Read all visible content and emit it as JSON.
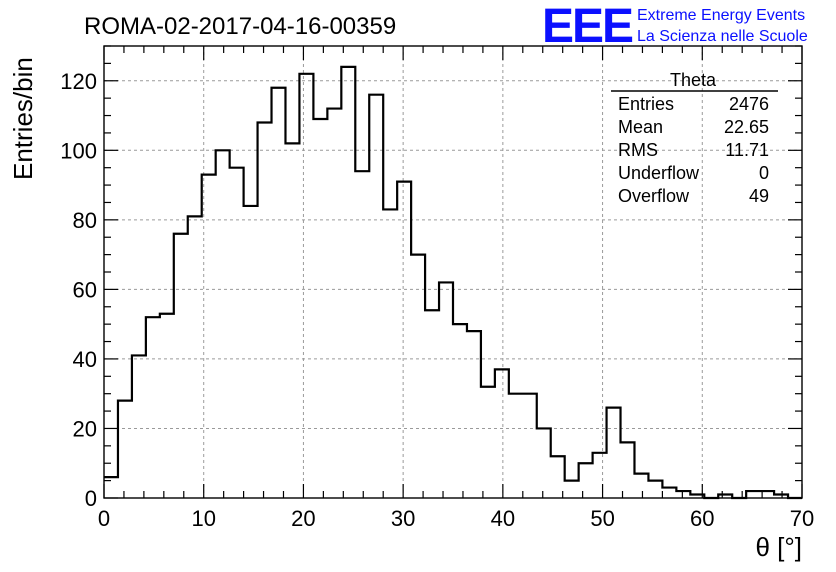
{
  "title": "ROMA-02-2017-04-16-00359",
  "logo": {
    "mark": "EEE",
    "line1": "Extreme Energy Events",
    "line2": "La Scienza nelle Scuole",
    "color": "#0b10ff"
  },
  "stats_box": {
    "title": "Theta",
    "rows": [
      {
        "label": "Entries",
        "value": "2476"
      },
      {
        "label": "Mean",
        "value": "22.65"
      },
      {
        "label": "RMS",
        "value": "11.71"
      },
      {
        "label": "Underflow",
        "value": "0"
      },
      {
        "label": "Overflow",
        "value": "49"
      }
    ]
  },
  "chart_data": {
    "type": "bar",
    "histogram": true,
    "title": "ROMA-02-2017-04-16-00359",
    "xlabel": "θ [°]",
    "ylabel": "Entries/bin",
    "xlim": [
      0,
      70
    ],
    "ylim": [
      0,
      130
    ],
    "bin_width": 1.4,
    "x_ticks": [
      0,
      10,
      20,
      30,
      40,
      50,
      60,
      70
    ],
    "y_ticks": [
      0,
      20,
      40,
      60,
      80,
      100,
      120
    ],
    "grid": true,
    "values": [
      6,
      28,
      41,
      52,
      53,
      76,
      81,
      93,
      100,
      95,
      84,
      108,
      118,
      102,
      122,
      109,
      112,
      124,
      94,
      116,
      83,
      91,
      70,
      54,
      62,
      50,
      48,
      32,
      37,
      30,
      30,
      20,
      12,
      5,
      10,
      13,
      26,
      16,
      7,
      5,
      3,
      2,
      1,
      0,
      1,
      0,
      2,
      2,
      1,
      0
    ]
  }
}
